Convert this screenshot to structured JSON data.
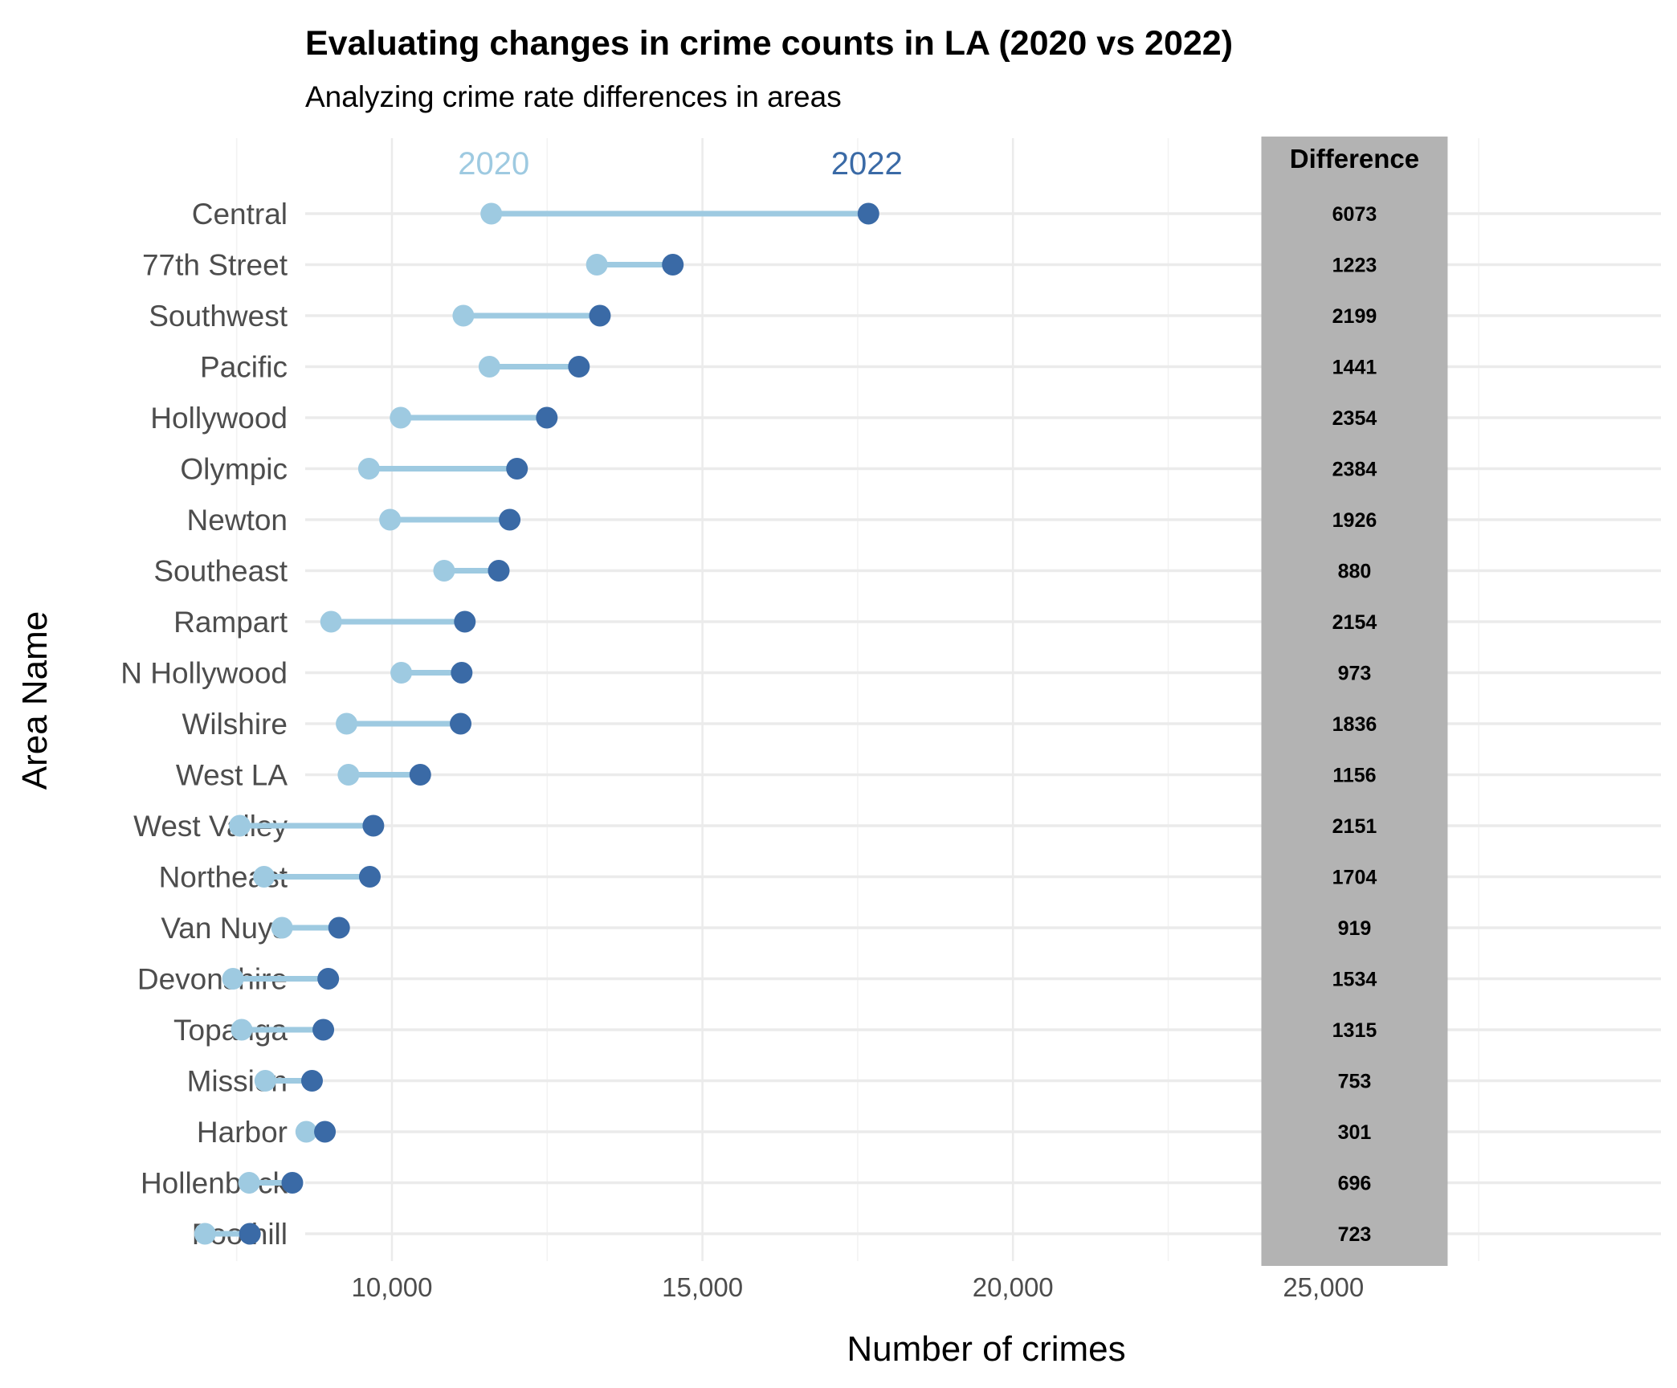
{
  "colors": {
    "series_2020": "#9ecae1",
    "series_2022": "#3a6aa6",
    "difference_panel": "#b3b3b3",
    "grid": "#ebebeb"
  },
  "chart_data": {
    "type": "dumbbell",
    "title": "Evaluating changes in crime counts in LA (2020 vs 2022)",
    "subtitle": "Analyzing crime rate differences in areas",
    "xlabel": "Number of crimes",
    "ylabel": "Area Name",
    "xlim": [
      6000,
      27500
    ],
    "xticks": [
      10000,
      15000,
      20000,
      25000
    ],
    "xtick_labels": [
      "10,000",
      "15,000",
      "20,000",
      "25,000"
    ],
    "grid": true,
    "series_labels": [
      "2020",
      "2022"
    ],
    "difference_header": "Difference",
    "categories": [
      "Central",
      "77th Street",
      "Southwest",
      "Pacific",
      "Hollywood",
      "Olympic",
      "Newton",
      "Southeast",
      "Rampart",
      "N Hollywood",
      "Wilshire",
      "West LA",
      "West Valley",
      "Northeast",
      "Van Nuys",
      "Devonshire",
      "Topanga",
      "Mission",
      "Harbor",
      "Hollenbeck",
      "Foothill"
    ],
    "series": [
      {
        "name": "2020",
        "values": [
          11600,
          13300,
          11150,
          11570,
          10140,
          9630,
          9970,
          10840,
          9020,
          10150,
          9270,
          9300,
          7550,
          7940,
          8230,
          7440,
          7580,
          7960,
          8620,
          7700,
          6990
        ]
      },
      {
        "name": "2022",
        "values": [
          17673,
          14523,
          13349,
          13011,
          12494,
          12014,
          11896,
          11720,
          11174,
          11123,
          11106,
          10456,
          9701,
          9644,
          9149,
          8974,
          8895,
          8713,
          8921,
          8396,
          7713
        ]
      }
    ],
    "difference": [
      "6073",
      "1223",
      "2199",
      "1441",
      "2354",
      "2384",
      "1926",
      "880",
      "2154",
      "973",
      "1836",
      "1156",
      "2151",
      "1704",
      "919",
      "1534",
      "1315",
      "753",
      "301",
      "696",
      "723"
    ]
  }
}
